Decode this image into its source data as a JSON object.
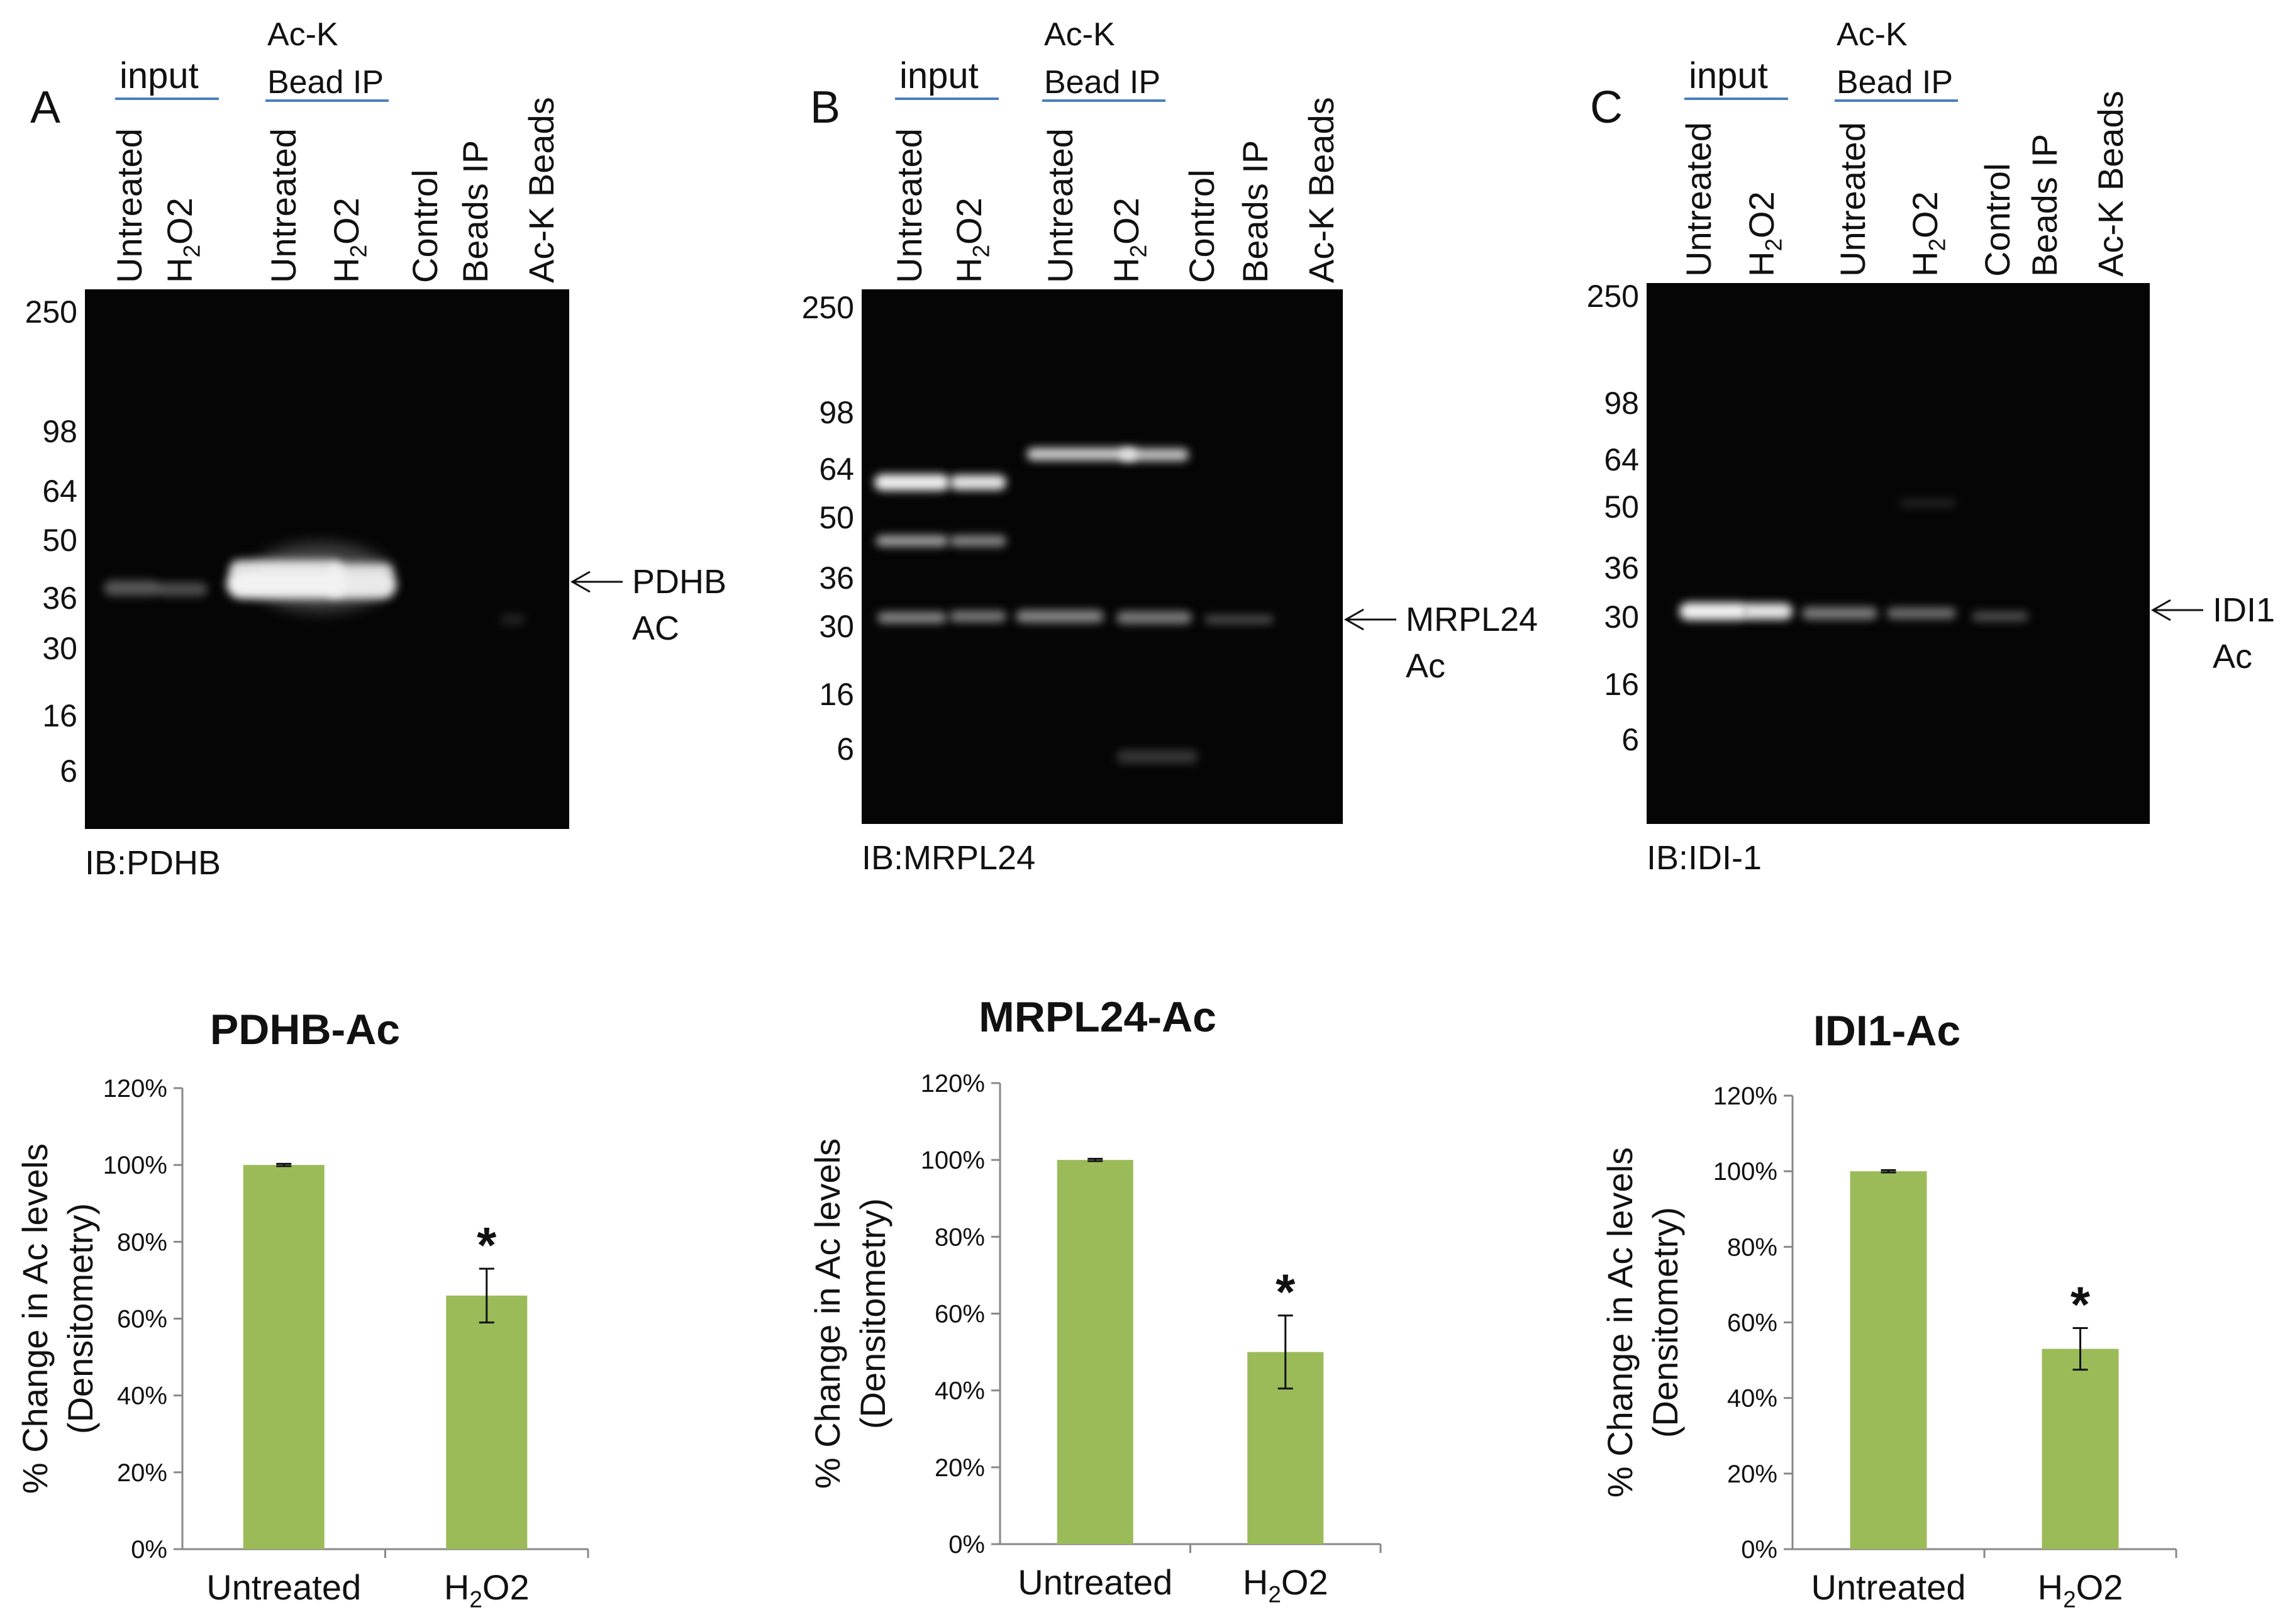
{
  "panels": [
    {
      "letter": "A",
      "group_input": "input",
      "group_ip_line1": "Ac-K",
      "group_ip_line2": "Bead IP",
      "lanes": [
        "Untreated",
        "H2O2",
        "Untreated",
        "H2O2",
        "Control",
        "Beads IP",
        "Ac-K Beads"
      ],
      "markers": [
        "250",
        "98",
        "64",
        "50",
        "36",
        "30",
        "16",
        "6"
      ],
      "arrow_label_line1": "PDHB",
      "arrow_label_line2": "AC",
      "ib_label": "IB:PDHB"
    },
    {
      "letter": "B",
      "group_input": "input",
      "group_ip_line1": "Ac-K",
      "group_ip_line2": "Bead IP",
      "lanes": [
        "Untreated",
        "H2O2",
        "Untreated",
        "H2O2",
        "Control",
        "Beads IP",
        "Ac-K Beads"
      ],
      "markers": [
        "250",
        "98",
        "64",
        "50",
        "36",
        "30",
        "16",
        "6"
      ],
      "arrow_label_line1": "MRPL24",
      "arrow_label_line2": "Ac",
      "ib_label": "IB:MRPL24"
    },
    {
      "letter": "C",
      "group_input": "input",
      "group_ip_line1": "Ac-K",
      "group_ip_line2": "Bead IP",
      "lanes": [
        "Untreated",
        "H2O2",
        "Untreated",
        "H2O2",
        "Control",
        "Beads IP",
        "Ac-K Beads"
      ],
      "markers": [
        "250",
        "98",
        "64",
        "50",
        "36",
        "30",
        "16",
        "6"
      ],
      "arrow_label_line1": "IDI1",
      "arrow_label_line2": "Ac",
      "ib_label": "IB:IDI-1"
    }
  ],
  "colors": {
    "bar": "#9bbb59",
    "asterisk": "#9bbb59",
    "axis": "#888888",
    "gel": "#050505",
    "band": "#f2f2f2",
    "group_underline": "#4a7fc1"
  },
  "chart_data": [
    {
      "type": "bar",
      "title": "PDHB-Ac",
      "ylabel_line1": "% Change in Ac levels",
      "ylabel_line2": "(Densitometry)",
      "categories": [
        "Untreated",
        "H2O2"
      ],
      "values": [
        100,
        66
      ],
      "errors": [
        0.3,
        7
      ],
      "significance": [
        "",
        "*"
      ],
      "ylim": [
        0,
        120
      ],
      "yticks": [
        "0%",
        "20%",
        "40%",
        "60%",
        "80%",
        "100%",
        "120%"
      ],
      "grid": false,
      "legend": "none"
    },
    {
      "type": "bar",
      "title": "MRPL24-Ac",
      "ylabel_line1": "% Change in Ac levels",
      "ylabel_line2": "(Densitometry)",
      "categories": [
        "Untreated",
        "H2O2"
      ],
      "values": [
        100,
        50
      ],
      "errors": [
        0.3,
        9.5
      ],
      "significance": [
        "",
        "*"
      ],
      "ylim": [
        0,
        120
      ],
      "yticks": [
        "0%",
        "20%",
        "40%",
        "60%",
        "80%",
        "100%",
        "120%"
      ],
      "grid": false,
      "legend": "none"
    },
    {
      "type": "bar",
      "title": "IDI1-Ac",
      "ylabel_line1": "% Change in Ac levels",
      "ylabel_line2": "(Densitometry)",
      "categories": [
        "Untreated",
        "H2O2"
      ],
      "values": [
        100,
        53
      ],
      "errors": [
        0.3,
        5.5
      ],
      "significance": [
        "",
        "*"
      ],
      "ylim": [
        0,
        120
      ],
      "yticks": [
        "0%",
        "20%",
        "40%",
        "60%",
        "80%",
        "100%",
        "120%"
      ],
      "grid": false,
      "legend": "none"
    }
  ]
}
